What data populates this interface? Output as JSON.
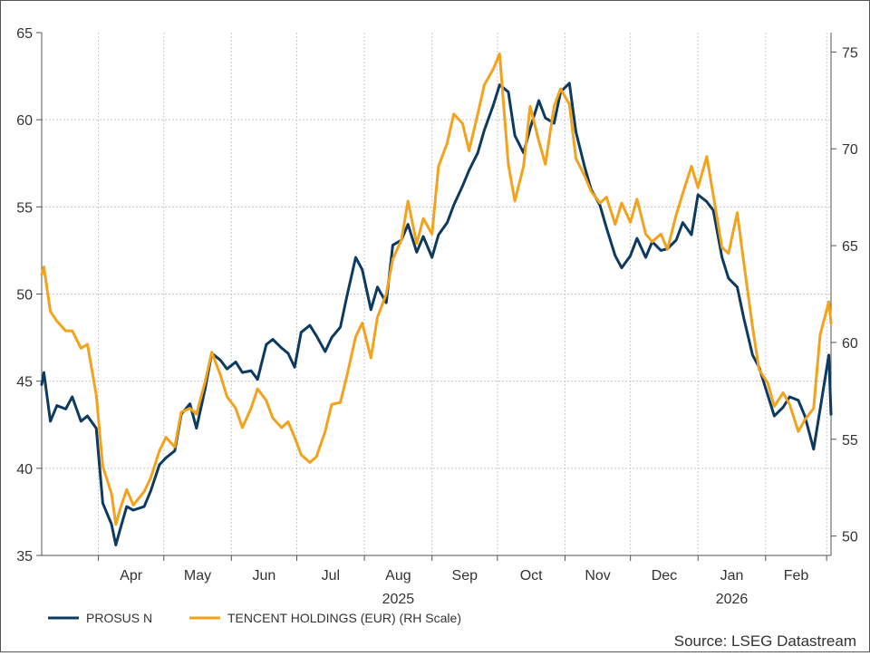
{
  "chart_data": {
    "type": "line",
    "title": "",
    "source": "Source: LSEG Datastream",
    "x_axis": {
      "month_labels": [
        "Apr",
        "May",
        "Jun",
        "Jul",
        "Aug",
        "Sep",
        "Oct",
        "Nov",
        "Dec",
        "Jan",
        "Feb"
      ],
      "year_labels": [
        "2025",
        "2026"
      ],
      "range": [
        "2025-03-06",
        "2026-03-03"
      ],
      "scale": "date"
    },
    "y_left": {
      "range": [
        35,
        65
      ],
      "ticks": [
        "35",
        "40",
        "45",
        "50",
        "55",
        "60",
        "65"
      ]
    },
    "y_right": {
      "range": [
        49,
        76
      ],
      "ticks": [
        "50",
        "55",
        "60",
        "65",
        "70",
        "75"
      ]
    },
    "grid": true,
    "legend_position": "bottom-left",
    "series": [
      {
        "name": "PROSUS N",
        "color": "#0d3a5f",
        "axis": "left",
        "points": [
          [
            "2025-03-06",
            44.8
          ],
          [
            "2025-03-07",
            45.5
          ],
          [
            "2025-03-10",
            42.7
          ],
          [
            "2025-03-13",
            43.6
          ],
          [
            "2025-03-17",
            43.4
          ],
          [
            "2025-03-20",
            44.1
          ],
          [
            "2025-03-24",
            42.7
          ],
          [
            "2025-03-27",
            43.0
          ],
          [
            "2025-03-31",
            42.3
          ],
          [
            "2025-04-03",
            38.0
          ],
          [
            "2025-04-07",
            36.8
          ],
          [
            "2025-04-09",
            35.6
          ],
          [
            "2025-04-11",
            36.5
          ],
          [
            "2025-04-14",
            37.8
          ],
          [
            "2025-04-17",
            37.6
          ],
          [
            "2025-04-22",
            37.8
          ],
          [
            "2025-04-25",
            38.7
          ],
          [
            "2025-04-29",
            40.2
          ],
          [
            "2025-05-02",
            40.6
          ],
          [
            "2025-05-06",
            41.0
          ],
          [
            "2025-05-09",
            43.1
          ],
          [
            "2025-05-13",
            43.7
          ],
          [
            "2025-05-16",
            42.3
          ],
          [
            "2025-05-20",
            44.6
          ],
          [
            "2025-05-23",
            46.6
          ],
          [
            "2025-05-27",
            46.2
          ],
          [
            "2025-05-30",
            45.7
          ],
          [
            "2025-06-03",
            46.1
          ],
          [
            "2025-06-06",
            45.5
          ],
          [
            "2025-06-10",
            45.6
          ],
          [
            "2025-06-13",
            45.1
          ],
          [
            "2025-06-17",
            47.1
          ],
          [
            "2025-06-20",
            47.4
          ],
          [
            "2025-06-24",
            46.9
          ],
          [
            "2025-06-27",
            46.6
          ],
          [
            "2025-06-30",
            45.8
          ],
          [
            "2025-07-03",
            47.8
          ],
          [
            "2025-07-07",
            48.2
          ],
          [
            "2025-07-10",
            47.6
          ],
          [
            "2025-07-14",
            46.7
          ],
          [
            "2025-07-17",
            47.5
          ],
          [
            "2025-07-21",
            48.1
          ],
          [
            "2025-07-24",
            49.9
          ],
          [
            "2025-07-28",
            52.1
          ],
          [
            "2025-07-31",
            51.4
          ],
          [
            "2025-08-04",
            49.1
          ],
          [
            "2025-08-07",
            50.4
          ],
          [
            "2025-08-11",
            49.5
          ],
          [
            "2025-08-14",
            52.8
          ],
          [
            "2025-08-18",
            53.1
          ],
          [
            "2025-08-21",
            54.0
          ],
          [
            "2025-08-25",
            52.4
          ],
          [
            "2025-08-28",
            53.3
          ],
          [
            "2025-09-01",
            52.1
          ],
          [
            "2025-09-04",
            53.4
          ],
          [
            "2025-09-08",
            54.1
          ],
          [
            "2025-09-11",
            55.1
          ],
          [
            "2025-09-15",
            56.2
          ],
          [
            "2025-09-18",
            57.1
          ],
          [
            "2025-09-22",
            58.1
          ],
          [
            "2025-09-25",
            59.4
          ],
          [
            "2025-09-29",
            60.8
          ],
          [
            "2025-10-02",
            62.0
          ],
          [
            "2025-10-06",
            61.6
          ],
          [
            "2025-10-09",
            59.1
          ],
          [
            "2025-10-13",
            58.1
          ],
          [
            "2025-10-16",
            59.5
          ],
          [
            "2025-10-20",
            61.1
          ],
          [
            "2025-10-23",
            60.1
          ],
          [
            "2025-10-27",
            59.8
          ],
          [
            "2025-10-30",
            61.6
          ],
          [
            "2025-11-03",
            62.1
          ],
          [
            "2025-11-06",
            59.3
          ],
          [
            "2025-11-10",
            57.3
          ],
          [
            "2025-11-13",
            56.0
          ],
          [
            "2025-11-17",
            55.1
          ],
          [
            "2025-11-20",
            53.8
          ],
          [
            "2025-11-24",
            52.2
          ],
          [
            "2025-11-27",
            51.5
          ],
          [
            "2025-12-01",
            52.2
          ],
          [
            "2025-12-04",
            53.2
          ],
          [
            "2025-12-08",
            52.1
          ],
          [
            "2025-12-11",
            53.0
          ],
          [
            "2025-12-15",
            52.5
          ],
          [
            "2025-12-18",
            52.6
          ],
          [
            "2025-12-22",
            53.1
          ],
          [
            "2025-12-25",
            54.1
          ],
          [
            "2025-12-29",
            53.4
          ],
          [
            "2026-01-01",
            55.7
          ],
          [
            "2026-01-05",
            55.3
          ],
          [
            "2026-01-08",
            54.8
          ],
          [
            "2026-01-12",
            52.1
          ],
          [
            "2026-01-15",
            50.9
          ],
          [
            "2026-01-19",
            50.4
          ],
          [
            "2026-01-22",
            48.6
          ],
          [
            "2026-01-26",
            46.5
          ],
          [
            "2026-01-29",
            45.8
          ],
          [
            "2026-02-02",
            44.2
          ],
          [
            "2026-02-05",
            43.0
          ],
          [
            "2026-02-09",
            43.5
          ],
          [
            "2026-02-12",
            44.1
          ],
          [
            "2026-02-16",
            43.9
          ],
          [
            "2026-02-19",
            43.0
          ],
          [
            "2026-02-23",
            41.1
          ],
          [
            "2026-02-26",
            43.4
          ],
          [
            "2026-03-02",
            46.5
          ],
          [
            "2026-03-03",
            43.1
          ]
        ]
      },
      {
        "name": "TENCENT HOLDINGS (EUR) (RH Scale)",
        "color": "#f2a21b",
        "axis": "right",
        "points": [
          [
            "2025-03-06",
            63.5
          ],
          [
            "2025-03-07",
            63.9
          ],
          [
            "2025-03-10",
            61.6
          ],
          [
            "2025-03-13",
            61.1
          ],
          [
            "2025-03-17",
            60.6
          ],
          [
            "2025-03-20",
            60.6
          ],
          [
            "2025-03-24",
            59.7
          ],
          [
            "2025-03-27",
            59.9
          ],
          [
            "2025-03-31",
            57.3
          ],
          [
            "2025-04-03",
            53.6
          ],
          [
            "2025-04-07",
            52.2
          ],
          [
            "2025-04-09",
            50.6
          ],
          [
            "2025-04-11",
            51.4
          ],
          [
            "2025-04-14",
            52.4
          ],
          [
            "2025-04-17",
            51.6
          ],
          [
            "2025-04-22",
            52.3
          ],
          [
            "2025-04-25",
            53.0
          ],
          [
            "2025-04-29",
            54.4
          ],
          [
            "2025-05-02",
            55.1
          ],
          [
            "2025-05-06",
            54.6
          ],
          [
            "2025-05-09",
            56.4
          ],
          [
            "2025-05-13",
            56.6
          ],
          [
            "2025-05-16",
            56.3
          ],
          [
            "2025-05-20",
            58.0
          ],
          [
            "2025-05-23",
            59.5
          ],
          [
            "2025-05-27",
            58.3
          ],
          [
            "2025-05-30",
            57.2
          ],
          [
            "2025-06-03",
            56.6
          ],
          [
            "2025-06-06",
            55.6
          ],
          [
            "2025-06-10",
            56.6
          ],
          [
            "2025-06-13",
            57.6
          ],
          [
            "2025-06-17",
            57.0
          ],
          [
            "2025-06-20",
            56.1
          ],
          [
            "2025-06-24",
            55.6
          ],
          [
            "2025-06-27",
            55.9
          ],
          [
            "2025-06-30",
            55.1
          ],
          [
            "2025-07-03",
            54.2
          ],
          [
            "2025-07-07",
            53.8
          ],
          [
            "2025-07-10",
            54.1
          ],
          [
            "2025-07-14",
            55.4
          ],
          [
            "2025-07-17",
            56.8
          ],
          [
            "2025-07-21",
            56.9
          ],
          [
            "2025-07-24",
            58.3
          ],
          [
            "2025-07-28",
            60.3
          ],
          [
            "2025-07-31",
            61.0
          ],
          [
            "2025-08-04",
            59.2
          ],
          [
            "2025-08-07",
            61.3
          ],
          [
            "2025-08-11",
            62.5
          ],
          [
            "2025-08-14",
            64.3
          ],
          [
            "2025-08-18",
            65.3
          ],
          [
            "2025-08-21",
            67.3
          ],
          [
            "2025-08-25",
            65.1
          ],
          [
            "2025-08-28",
            66.4
          ],
          [
            "2025-09-01",
            65.6
          ],
          [
            "2025-09-04",
            69.1
          ],
          [
            "2025-09-08",
            70.3
          ],
          [
            "2025-09-11",
            71.8
          ],
          [
            "2025-09-15",
            71.3
          ],
          [
            "2025-09-18",
            69.9
          ],
          [
            "2025-09-22",
            71.8
          ],
          [
            "2025-09-25",
            73.3
          ],
          [
            "2025-09-29",
            74.1
          ],
          [
            "2025-10-02",
            74.9
          ],
          [
            "2025-10-06",
            69.2
          ],
          [
            "2025-10-09",
            67.3
          ],
          [
            "2025-10-13",
            69.1
          ],
          [
            "2025-10-16",
            72.2
          ],
          [
            "2025-10-20",
            70.4
          ],
          [
            "2025-10-23",
            69.2
          ],
          [
            "2025-10-27",
            72.2
          ],
          [
            "2025-10-30",
            73.1
          ],
          [
            "2025-11-03",
            72.3
          ],
          [
            "2025-11-06",
            69.5
          ],
          [
            "2025-11-10",
            68.6
          ],
          [
            "2025-11-13",
            67.8
          ],
          [
            "2025-11-17",
            67.2
          ],
          [
            "2025-11-20",
            67.5
          ],
          [
            "2025-11-24",
            66.1
          ],
          [
            "2025-11-27",
            67.2
          ],
          [
            "2025-12-01",
            66.2
          ],
          [
            "2025-12-04",
            67.4
          ],
          [
            "2025-12-08",
            65.6
          ],
          [
            "2025-12-11",
            65.2
          ],
          [
            "2025-12-15",
            65.6
          ],
          [
            "2025-12-18",
            64.8
          ],
          [
            "2025-12-22",
            66.6
          ],
          [
            "2025-12-25",
            67.7
          ],
          [
            "2025-12-29",
            69.1
          ],
          [
            "2026-01-01",
            68.0
          ],
          [
            "2026-01-05",
            69.6
          ],
          [
            "2026-01-08",
            67.6
          ],
          [
            "2026-01-12",
            64.9
          ],
          [
            "2026-01-15",
            64.6
          ],
          [
            "2026-01-19",
            66.7
          ],
          [
            "2026-01-22",
            64.1
          ],
          [
            "2026-01-26",
            60.8
          ],
          [
            "2026-01-29",
            58.6
          ],
          [
            "2026-02-02",
            57.9
          ],
          [
            "2026-02-05",
            56.7
          ],
          [
            "2026-02-09",
            57.4
          ],
          [
            "2026-02-12",
            56.8
          ],
          [
            "2026-02-16",
            55.4
          ],
          [
            "2026-02-19",
            56.0
          ],
          [
            "2026-02-23",
            56.6
          ],
          [
            "2026-02-26",
            60.4
          ],
          [
            "2026-03-02",
            62.1
          ],
          [
            "2026-03-03",
            61.0
          ]
        ]
      }
    ]
  }
}
